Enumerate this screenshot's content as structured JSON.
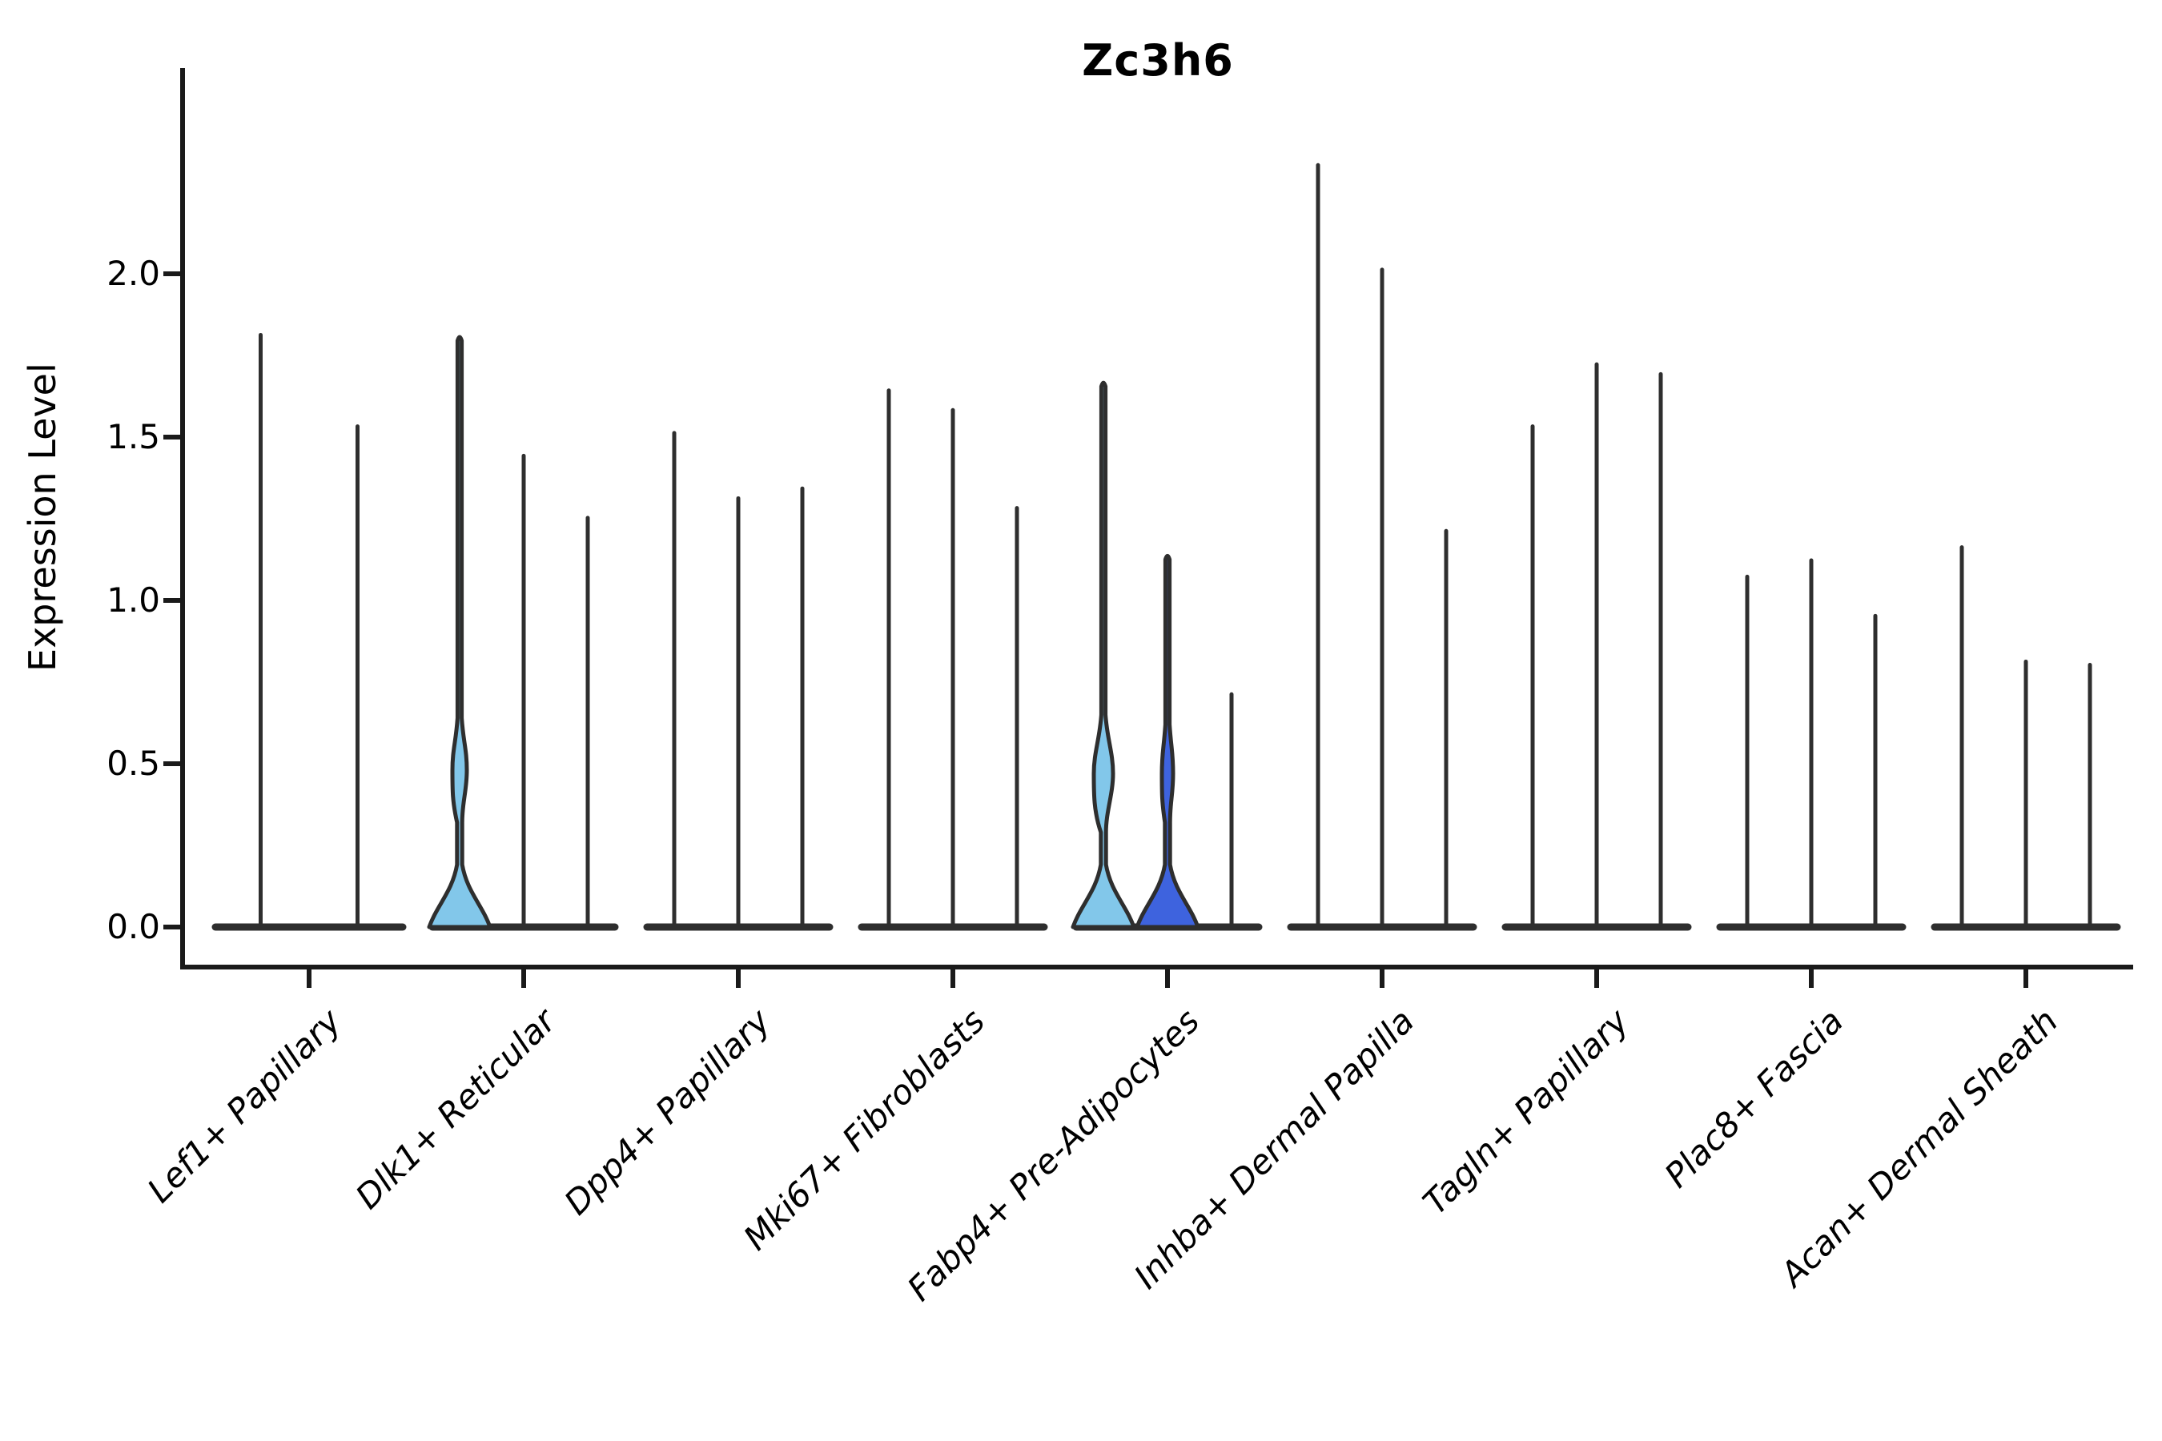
{
  "chart_data": {
    "type": "violin",
    "title": "Zc3h6",
    "ylabel": "Expression Level",
    "yticks": [
      2.0,
      1.5,
      1.0,
      0.5,
      0.0
    ],
    "ytick_labels": [
      "2.0",
      "1.5",
      "1.0",
      "0.5",
      "0.0"
    ],
    "ylim": [
      -0.12,
      2.6
    ],
    "grid": false,
    "legend_position": "none",
    "categories": [
      "Lef1+ Papillary",
      "Dlk1+ Reticular",
      "Dpp4+ Papillary",
      "Mki67+ Fibroblasts",
      "Fabp4+ Pre-Adipocytes",
      "Inhba+ Dermal Papilla",
      "Tagln+ Papillary",
      "Plac8+ Fascia",
      "Acan+ Dermal Sheath"
    ],
    "groups": [
      {
        "category": "Lef1+ Papillary",
        "violins": [
          {
            "max": 1.82
          },
          {
            "max": 1.54
          }
        ]
      },
      {
        "category": "Dlk1+ Reticular",
        "violins": [
          {
            "max": 1.81,
            "fill": "light_blue",
            "bulge": {
              "center": 0.48,
              "half": 0.16,
              "width": 9
            }
          },
          {
            "max": 1.45
          },
          {
            "max": 1.26
          }
        ]
      },
      {
        "category": "Dpp4+ Papillary",
        "violins": [
          {
            "max": 1.52
          },
          {
            "max": 1.32
          },
          {
            "max": 1.35
          }
        ]
      },
      {
        "category": "Mki67+ Fibroblasts",
        "violins": [
          {
            "max": 1.65
          },
          {
            "max": 1.59
          },
          {
            "max": 1.29
          }
        ]
      },
      {
        "category": "Fabp4+ Pre-Adipocytes",
        "violins": [
          {
            "max": 1.67,
            "fill": "light_blue",
            "bulge": {
              "center": 0.47,
              "half": 0.18,
              "width": 12
            }
          },
          {
            "max": 1.14,
            "fill": "royal_blue",
            "bulge": {
              "center": 0.47,
              "half": 0.15,
              "width": 7
            }
          },
          {
            "max": 0.72
          }
        ]
      },
      {
        "category": "Inhba+ Dermal Papilla",
        "violins": [
          {
            "max": 2.34
          },
          {
            "max": 2.02
          },
          {
            "max": 1.22
          }
        ]
      },
      {
        "category": "Tagln+ Papillary",
        "violins": [
          {
            "max": 1.54
          },
          {
            "max": 1.73
          },
          {
            "max": 1.7
          }
        ]
      },
      {
        "category": "Plac8+ Fascia",
        "violins": [
          {
            "max": 1.08
          },
          {
            "max": 1.13
          },
          {
            "max": 0.96
          }
        ]
      },
      {
        "category": "Acan+ Dermal Sheath",
        "violins": [
          {
            "max": 1.17
          },
          {
            "max": 0.82
          },
          {
            "max": 0.81
          }
        ]
      }
    ],
    "colors": {
      "light_blue": "#82C7EA",
      "royal_blue": "#3E63DE",
      "stroke": "#2E2E2E",
      "spine": "#1A1A1A"
    }
  }
}
